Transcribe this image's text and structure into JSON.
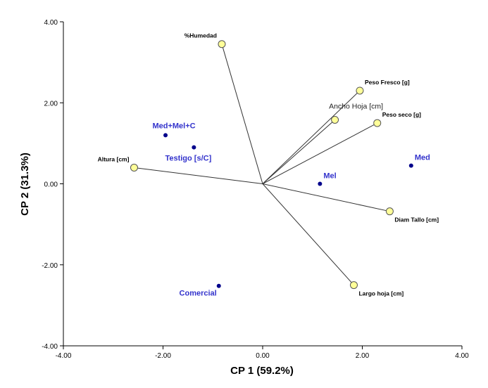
{
  "chart_data": {
    "type": "scatter",
    "subtype": "biplot",
    "xlabel": "CP 1 (59.2%)",
    "ylabel": "CP 2 (31.3%)",
    "xlim": [
      -4,
      4
    ],
    "ylim": [
      -4,
      4
    ],
    "xticks": [
      "-4.00",
      "-2.00",
      "0.00",
      "2.00",
      "4.00"
    ],
    "yticks": [
      "-4.00",
      "-2.00",
      "0.00",
      "2.00",
      "4.00"
    ],
    "variables": [
      {
        "name": "%Humedad",
        "x": -0.82,
        "y": 3.45,
        "label_style": "bold",
        "label_pos": "above-left"
      },
      {
        "name": "Peso Fresco [g]",
        "x": 1.95,
        "y": 2.3,
        "label_style": "bold",
        "label_pos": "above-right"
      },
      {
        "name": "Ancho Hoja [cm]",
        "x": 1.45,
        "y": 1.58,
        "label_style": "plain",
        "label_pos": "above-left"
      },
      {
        "name": "Peso seco [g]",
        "x": 2.3,
        "y": 1.5,
        "label_style": "bold",
        "label_pos": "above-right"
      },
      {
        "name": "Altura [cm]",
        "x": -2.58,
        "y": 0.4,
        "label_style": "bold",
        "label_pos": "above-left"
      },
      {
        "name": "Diam Tallo [cm]",
        "x": 2.55,
        "y": -0.68,
        "label_style": "bold",
        "label_pos": "below-right"
      },
      {
        "name": "Largo hoja [cm]",
        "x": 1.83,
        "y": -2.5,
        "label_style": "bold",
        "label_pos": "below-right"
      }
    ],
    "observations": [
      {
        "name": "Med+Mel+C",
        "x": -1.95,
        "y": 1.2,
        "label_pos": "above-left"
      },
      {
        "name": "Testigo [s/C]",
        "x": -1.38,
        "y": 0.9,
        "label_pos": "below"
      },
      {
        "name": "Mel",
        "x": 1.15,
        "y": 0.0,
        "label_pos": "above-right"
      },
      {
        "name": "Med",
        "x": 2.98,
        "y": 0.45,
        "label_pos": "above-right"
      },
      {
        "name": "Comercial",
        "x": -0.88,
        "y": -2.52,
        "label_pos": "below-left"
      }
    ],
    "colors": {
      "variable_marker_fill": "#ffff99",
      "variable_marker_stroke": "#555555",
      "vector_line": "#333333",
      "observation_marker": "#00008b",
      "observation_label": "#3333cc",
      "axis": "#000000"
    }
  }
}
